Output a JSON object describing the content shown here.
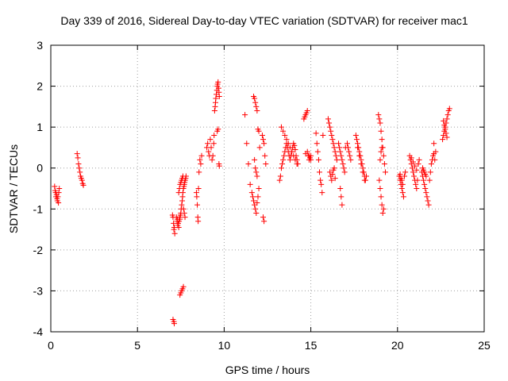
{
  "chart_data": {
    "type": "scatter",
    "title": "Day 339 of 2016, Sidereal Day-to-day VTEC variation (SDTVAR) for receiver mac1",
    "xlabel": "GPS time / hours",
    "ylabel": "SDTVAR / TECUs",
    "xlim": [
      0,
      25
    ],
    "ylim": [
      -4,
      3
    ],
    "x_ticks": [
      0,
      5,
      10,
      15,
      20,
      25
    ],
    "x_tick_labels": [
      "0",
      "5",
      "10",
      "15",
      "20",
      "25"
    ],
    "y_ticks": [
      -4,
      -3,
      -2,
      -1,
      0,
      1,
      2,
      3
    ],
    "y_tick_labels": [
      "-4",
      "-3",
      "-2",
      "-1",
      "0",
      "1",
      "2",
      "3"
    ],
    "grid": true,
    "marker": "+",
    "marker_color": "#ff0000",
    "series": [
      {
        "name": "SDTVAR",
        "x": [
          0.22,
          0.25,
          0.28,
          0.3,
          0.33,
          0.36,
          0.38,
          0.41,
          0.44,
          0.46,
          0.49,
          1.52,
          1.56,
          1.6,
          1.64,
          1.68,
          1.72,
          1.76,
          1.8,
          1.84,
          1.88,
          7.02,
          7.05,
          7.08,
          7.1,
          7.12,
          7.15,
          7.25,
          7.28,
          7.3,
          7.32,
          7.35,
          7.38,
          7.4,
          7.42,
          7.45,
          7.48,
          7.5,
          7.52,
          7.55,
          7.58,
          7.6,
          7.62,
          7.65,
          7.68,
          7.7,
          7.72,
          7.75,
          7.78,
          7.8,
          7.38,
          7.42,
          7.46,
          7.5,
          7.54,
          7.58,
          7.62,
          7.66,
          7.7,
          7.74,
          7.45,
          7.5,
          7.55,
          7.6,
          7.65,
          7.05,
          7.1,
          7.12,
          8.4,
          8.42,
          8.45,
          8.48,
          8.5,
          8.52,
          8.55,
          8.6,
          8.65,
          8.7,
          9.0,
          9.05,
          9.1,
          9.15,
          9.2,
          9.25,
          9.3,
          9.35,
          9.4,
          9.42,
          9.45,
          9.48,
          9.5,
          9.52,
          9.55,
          9.58,
          9.6,
          9.62,
          9.65,
          9.68,
          9.7,
          9.72,
          9.6,
          9.65,
          9.7,
          9.72,
          11.2,
          11.3,
          11.4,
          11.5,
          11.6,
          11.65,
          11.7,
          11.75,
          11.8,
          11.85,
          11.9,
          11.95,
          12.0,
          11.7,
          11.75,
          11.8,
          11.85,
          11.9,
          11.95,
          12.0,
          12.05,
          11.75,
          11.8,
          11.85,
          11.9,
          12.2,
          12.25,
          12.3,
          12.35,
          12.4,
          12.25,
          12.3,
          13.2,
          13.25,
          13.3,
          13.35,
          13.4,
          13.45,
          13.5,
          13.55,
          13.6,
          13.65,
          13.7,
          13.75,
          13.8,
          13.85,
          13.9,
          13.95,
          14.0,
          14.05,
          14.1,
          14.15,
          14.2,
          14.25,
          13.3,
          13.4,
          13.5,
          13.6,
          13.7,
          13.8,
          13.9,
          14.0,
          14.1,
          14.2,
          14.6,
          14.65,
          14.7,
          14.75,
          14.8,
          14.85,
          14.9,
          14.95,
          15.0,
          14.7,
          14.8,
          14.9,
          15.0,
          15.3,
          15.35,
          15.4,
          15.45,
          15.5,
          15.55,
          15.6,
          15.65,
          15.7,
          16.0,
          16.05,
          16.1,
          16.15,
          16.2,
          16.25,
          16.3,
          16.35,
          16.4,
          16.45,
          16.5,
          16.1,
          16.15,
          16.2,
          16.25,
          16.3,
          16.35,
          16.4,
          16.6,
          16.65,
          16.7,
          16.75,
          16.8,
          16.85,
          16.9,
          16.95,
          17.0,
          16.7,
          16.75,
          16.8,
          17.1,
          17.15,
          17.2,
          17.25,
          17.3,
          17.6,
          17.65,
          17.7,
          17.75,
          17.8,
          17.85,
          17.9,
          17.95,
          18.0,
          18.05,
          18.1,
          18.15,
          18.2,
          17.7,
          17.8,
          17.9,
          18.0,
          18.1,
          18.9,
          18.95,
          19.0,
          19.05,
          19.1,
          19.15,
          19.2,
          19.25,
          19.3,
          18.95,
          19.0,
          19.05,
          19.1,
          19.15,
          19.2,
          19.0,
          19.05,
          19.1,
          20.1,
          20.15,
          20.2,
          20.25,
          20.3,
          20.35,
          20.4,
          20.45,
          20.15,
          20.2,
          20.25,
          20.3,
          20.7,
          20.75,
          20.8,
          20.85,
          20.9,
          20.95,
          21.0,
          21.05,
          21.1,
          21.15,
          21.2,
          21.25,
          20.8,
          20.9,
          21.0,
          21.1,
          21.4,
          21.45,
          21.5,
          21.55,
          21.6,
          21.65,
          21.7,
          21.75,
          21.8,
          21.85,
          21.9,
          21.95,
          22.0,
          22.05,
          22.1,
          22.15,
          21.45,
          21.5,
          21.55,
          21.6,
          21.65,
          22.1,
          22.2,
          22.6,
          22.65,
          22.7,
          22.75,
          22.8,
          22.85,
          22.9,
          22.95,
          23.0,
          22.65,
          22.7,
          22.75,
          22.8,
          22.85
        ],
        "y": [
          -0.45,
          -0.55,
          -0.6,
          -0.7,
          -0.65,
          -0.75,
          -0.8,
          -0.7,
          -0.85,
          -0.6,
          -0.5,
          0.35,
          0.25,
          0.1,
          0.0,
          -0.1,
          -0.2,
          -0.25,
          -0.3,
          -0.38,
          -0.42,
          -1.15,
          -1.2,
          -1.35,
          -1.5,
          -1.45,
          -1.6,
          -1.2,
          -1.3,
          -1.25,
          -1.4,
          -1.35,
          -1.45,
          -1.3,
          -1.2,
          -1.25,
          -1.15,
          -1.1,
          -1.0,
          -0.9,
          -0.8,
          -0.7,
          -0.6,
          -0.5,
          -0.45,
          -0.4,
          -0.35,
          -0.3,
          -0.25,
          -0.2,
          -0.6,
          -0.5,
          -0.4,
          -0.35,
          -0.3,
          -0.25,
          -0.2,
          -1.0,
          -1.1,
          -1.2,
          -3.1,
          -3.05,
          -3.0,
          -2.95,
          -2.9,
          -3.7,
          -3.75,
          -3.8,
          -0.6,
          -0.7,
          -0.9,
          -1.2,
          -1.3,
          -0.5,
          -0.1,
          0.2,
          0.1,
          0.3,
          0.5,
          0.6,
          0.4,
          0.3,
          0.7,
          0.5,
          0.2,
          0.3,
          0.6,
          0.8,
          1.4,
          1.5,
          1.6,
          1.7,
          1.8,
          1.9,
          2.0,
          2.05,
          2.1,
          1.95,
          1.85,
          1.75,
          0.9,
          0.95,
          0.1,
          0.05,
          1.3,
          0.6,
          0.1,
          -0.4,
          -0.6,
          -0.7,
          -0.8,
          -0.9,
          -1.0,
          -1.1,
          -0.85,
          -0.7,
          -0.5,
          1.75,
          1.7,
          1.6,
          1.5,
          1.4,
          0.95,
          0.9,
          0.5,
          0.2,
          0.0,
          -0.1,
          -0.2,
          0.8,
          0.7,
          0.6,
          0.3,
          0.1,
          -1.2,
          -1.3,
          -0.3,
          -0.2,
          0.0,
          0.1,
          0.2,
          0.3,
          0.4,
          0.5,
          0.6,
          0.5,
          0.4,
          0.3,
          0.2,
          0.3,
          0.4,
          0.5,
          0.6,
          0.55,
          0.45,
          0.3,
          0.2,
          0.1,
          1.0,
          0.9,
          0.8,
          0.7,
          0.6,
          0.5,
          0.4,
          0.3,
          0.2,
          0.1,
          1.2,
          1.25,
          1.3,
          1.35,
          1.4,
          0.3,
          0.2,
          0.25,
          0.3,
          0.35,
          0.4,
          0.3,
          0.2,
          0.85,
          0.6,
          0.4,
          0.2,
          -0.1,
          -0.3,
          -0.4,
          -0.6,
          0.8,
          1.2,
          1.1,
          1.0,
          0.9,
          0.8,
          0.7,
          0.6,
          0.5,
          0.4,
          0.3,
          0.2,
          -0.1,
          -0.2,
          -0.3,
          -0.15,
          -0.05,
          0.0,
          -0.25,
          0.6,
          0.5,
          0.4,
          0.3,
          0.2,
          0.1,
          0.0,
          -0.1,
          0.5,
          -0.5,
          -0.7,
          -0.9,
          0.6,
          0.5,
          0.4,
          0.3,
          0.2,
          0.8,
          0.7,
          0.6,
          0.5,
          0.4,
          0.3,
          0.2,
          0.1,
          0.0,
          -0.1,
          -0.2,
          -0.3,
          -0.2,
          0.5,
          0.3,
          0.1,
          -0.1,
          -0.3,
          1.3,
          1.2,
          1.1,
          0.9,
          0.7,
          0.5,
          0.3,
          0.1,
          -0.1,
          -0.3,
          -0.5,
          -0.7,
          -0.9,
          -1.1,
          -1.0,
          0.2,
          0.4,
          0.5,
          -0.2,
          -0.3,
          -0.4,
          -0.5,
          -0.6,
          -0.7,
          -0.2,
          -0.1,
          -0.15,
          -0.25,
          -0.3,
          -0.4,
          0.3,
          0.2,
          0.1,
          0.0,
          -0.1,
          -0.2,
          -0.3,
          -0.4,
          -0.5,
          -0.3,
          0.1,
          0.2,
          0.25,
          0.15,
          0.05,
          -0.05,
          -0.1,
          -0.2,
          -0.3,
          -0.4,
          -0.5,
          -0.6,
          -0.7,
          -0.8,
          -0.9,
          -0.3,
          -0.1,
          0.1,
          0.2,
          0.3,
          0.35,
          0.2,
          0.0,
          -0.05,
          -0.1,
          -0.15,
          -0.2,
          0.6,
          0.4,
          0.7,
          0.8,
          0.9,
          1.0,
          1.1,
          1.2,
          1.3,
          1.4,
          1.45,
          1.15,
          1.05,
          0.95,
          0.85,
          0.75
        ]
      }
    ]
  }
}
